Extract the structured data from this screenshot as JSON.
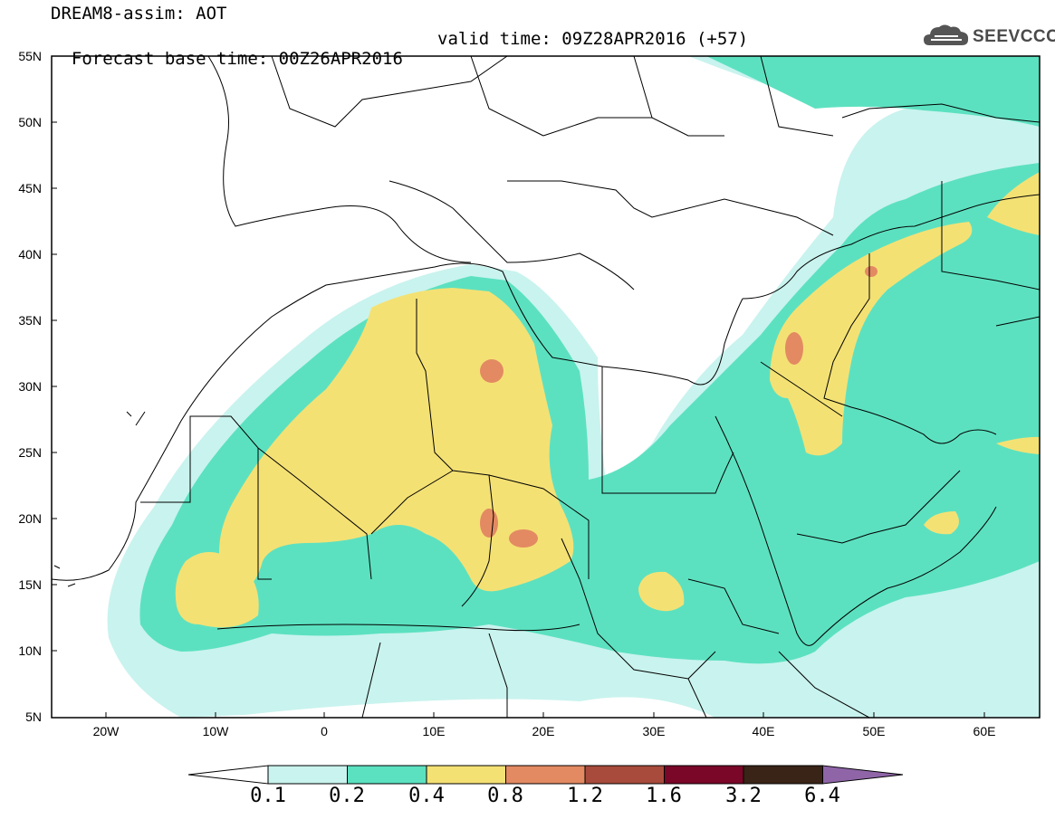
{
  "title": {
    "line1": "DREAM8-assim: AOT",
    "line2": "Forecast base time: 00Z26APR2016",
    "valid": "valid time: 09Z28APR2016 (+57)"
  },
  "logo": {
    "text": "SEEVCCC",
    "icon": "cloud-icon"
  },
  "latitudes": [
    "55N",
    "50N",
    "45N",
    "40N",
    "35N",
    "30N",
    "25N",
    "20N",
    "15N",
    "10N",
    "5N"
  ],
  "longitudes": [
    "20W",
    "10W",
    "0",
    "10E",
    "20E",
    "30E",
    "40E",
    "50E",
    "60E"
  ],
  "colorbar": {
    "labels": [
      "0.1",
      "0.2",
      "0.4",
      "0.8",
      "1.2",
      "1.6",
      "3.2",
      "6.4"
    ],
    "colors": [
      "#ffffff",
      "#c9f3ee",
      "#5ce1c0",
      "#f4e174",
      "#e38a62",
      "#a84b3c",
      "#7a0628",
      "#3a2417",
      "#8f65a8"
    ]
  }
}
